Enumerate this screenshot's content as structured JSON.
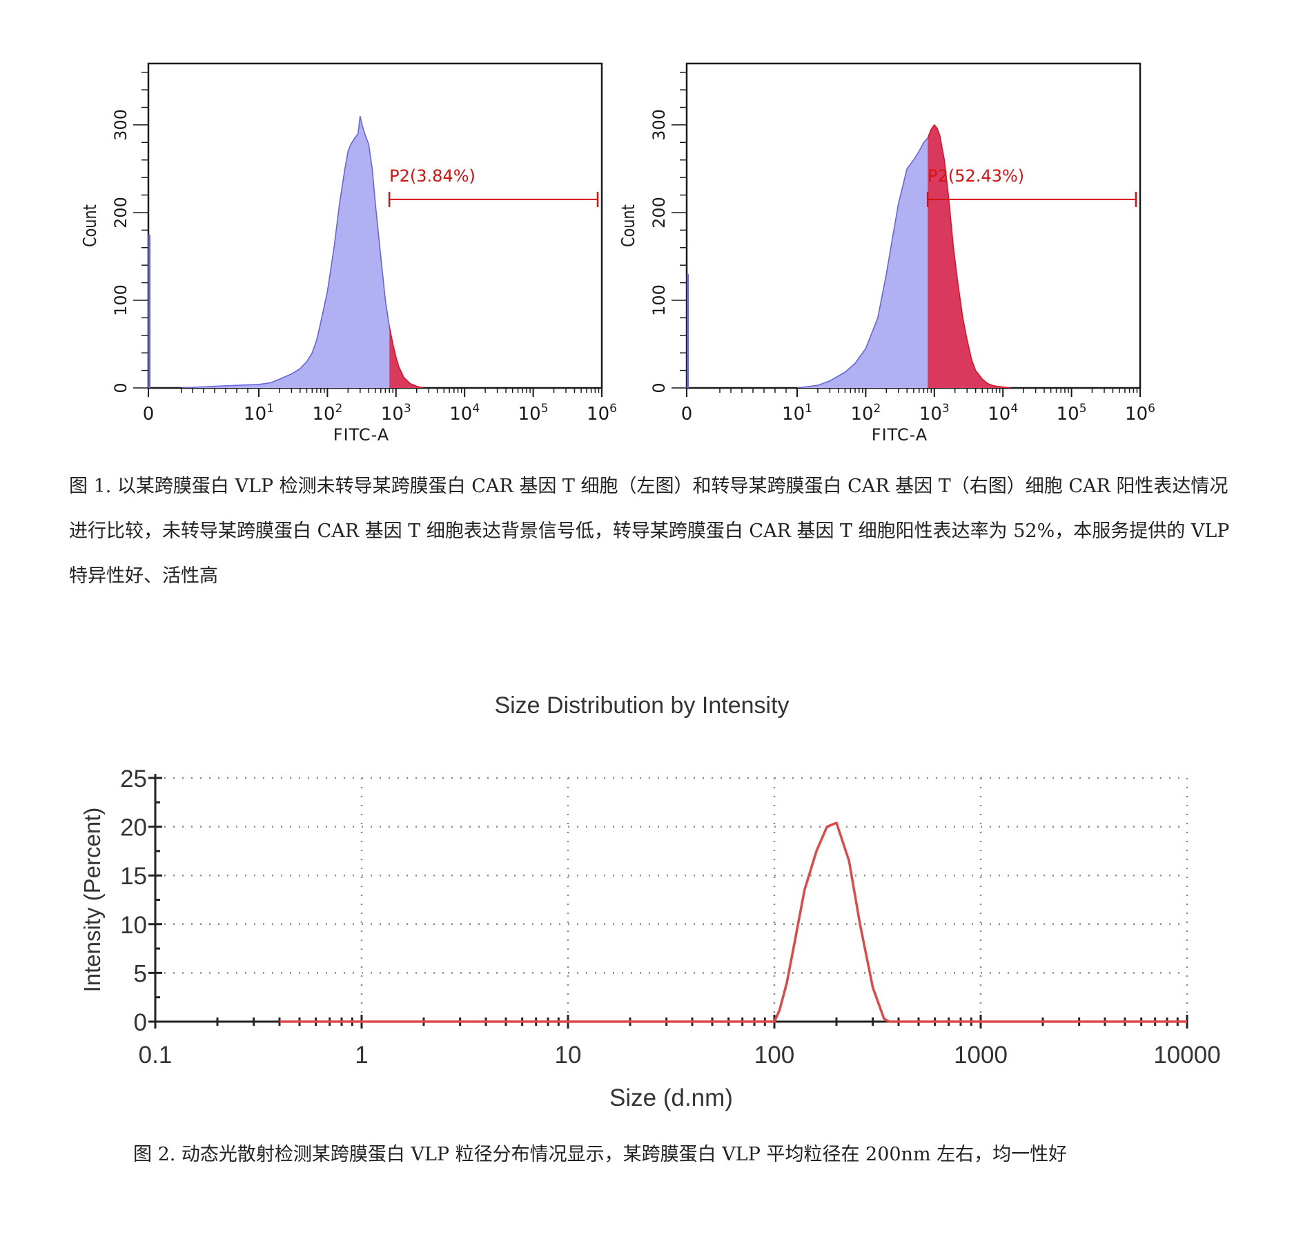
{
  "chart_data": [
    {
      "type": "area",
      "name": "flow-histogram-left",
      "xlabel": "FITC-A",
      "ylabel": "Count",
      "x_scale": "biexponential-log",
      "xlim": [
        0,
        1000000
      ],
      "ylim": [
        0,
        370
      ],
      "x_ticks": [
        {
          "value": 0,
          "base": "0",
          "exp": ""
        },
        {
          "value": 10,
          "base": "10",
          "exp": "1"
        },
        {
          "value": 100,
          "base": "10",
          "exp": "2"
        },
        {
          "value": 1000,
          "base": "10",
          "exp": "3"
        },
        {
          "value": 10000,
          "base": "10",
          "exp": "4"
        },
        {
          "value": 100000,
          "base": "10",
          "exp": "5"
        },
        {
          "value": 1000000,
          "base": "10",
          "exp": "6"
        }
      ],
      "y_ticks": [
        "0",
        "100",
        "200",
        "300"
      ],
      "gate": {
        "label": "P2(3.84%)",
        "from": 800,
        "to": 1000000,
        "percent": 3.84,
        "count_level": 215
      },
      "colors": {
        "negative": "#b0b0f2",
        "negative_edge": "#6565dc",
        "positive": "#d8395c",
        "positive_edge": "#e01020",
        "gate": "#d41212"
      },
      "zero_bin_count": 175,
      "series": [
        {
          "x": [
            3,
            6,
            10,
            15,
            20,
            30,
            40,
            50,
            60,
            70,
            80,
            100,
            125,
            150,
            180,
            200,
            220,
            250,
            280,
            300,
            320,
            350,
            400,
            450,
            500,
            600,
            700,
            800,
            900,
            1000,
            1100,
            1300,
            1600,
            2000,
            2500
          ],
          "y": [
            0,
            2,
            4,
            6,
            10,
            16,
            22,
            30,
            40,
            55,
            75,
            110,
            160,
            210,
            250,
            270,
            278,
            285,
            290,
            310,
            300,
            290,
            278,
            250,
            210,
            150,
            100,
            70,
            50,
            35,
            24,
            12,
            5,
            2,
            0
          ]
        }
      ]
    },
    {
      "type": "area",
      "name": "flow-histogram-right",
      "xlabel": "FITC-A",
      "ylabel": "Count",
      "x_scale": "biexponential-log",
      "xlim": [
        0,
        1000000
      ],
      "ylim": [
        0,
        370
      ],
      "x_ticks": [
        {
          "value": 0,
          "base": "0",
          "exp": ""
        },
        {
          "value": 10,
          "base": "10",
          "exp": "1"
        },
        {
          "value": 100,
          "base": "10",
          "exp": "2"
        },
        {
          "value": 1000,
          "base": "10",
          "exp": "3"
        },
        {
          "value": 10000,
          "base": "10",
          "exp": "4"
        },
        {
          "value": 100000,
          "base": "10",
          "exp": "5"
        },
        {
          "value": 1000000,
          "base": "10",
          "exp": "6"
        }
      ],
      "y_ticks": [
        "0",
        "100",
        "200",
        "300"
      ],
      "gate": {
        "label": "P2(52.43%)",
        "from": 800,
        "to": 1000000,
        "percent": 52.43,
        "count_level": 215
      },
      "colors": {
        "negative": "#b0b0f2",
        "negative_edge": "#6565dc",
        "positive": "#d8395c",
        "positive_edge": "#e01020",
        "gate": "#d41212"
      },
      "zero_bin_count": 130,
      "series": [
        {
          "x": [
            10,
            20,
            30,
            50,
            70,
            100,
            150,
            200,
            250,
            300,
            400,
            500,
            600,
            700,
            800,
            900,
            1000,
            1100,
            1200,
            1400,
            1600,
            1900,
            2200,
            2600,
            3000,
            3500,
            4000,
            5000,
            6000,
            7000,
            8000,
            10000,
            13000
          ],
          "y": [
            0,
            3,
            8,
            18,
            28,
            45,
            80,
            130,
            175,
            210,
            250,
            260,
            270,
            280,
            285,
            295,
            300,
            296,
            288,
            260,
            220,
            160,
            120,
            80,
            55,
            32,
            20,
            10,
            5,
            3,
            2,
            1,
            0
          ]
        }
      ]
    },
    {
      "type": "line",
      "name": "size-distribution",
      "title": "Size Distribution by Intensity",
      "xlabel": "Size (d.nm)",
      "ylabel": "Intensity (Percent)",
      "x_scale": "log",
      "xlim": [
        0.1,
        10000
      ],
      "ylim": [
        0,
        25
      ],
      "x_ticks": [
        "0.1",
        "1",
        "10",
        "100",
        "1000",
        "10000"
      ],
      "y_ticks": [
        "0",
        "5",
        "10",
        "15",
        "20",
        "25"
      ],
      "grid": true,
      "colors": {
        "line": "#e04848",
        "axis": "#222222",
        "grid": "#888888"
      },
      "series": [
        {
          "x": [
            0.4,
            100,
            106,
            115,
            125,
            140,
            160,
            180,
            200,
            230,
            260,
            300,
            340,
            360,
            10000
          ],
          "y": [
            0,
            0,
            1.2,
            4,
            8,
            13.5,
            17.5,
            20,
            20.4,
            16.5,
            10,
            3.5,
            0.3,
            0,
            0
          ]
        }
      ]
    }
  ],
  "captions": {
    "figure1": "图 1. 以某跨膜蛋白 VLP 检测未转导某跨膜蛋白 CAR 基因 T 细胞（左图）和转导某跨膜蛋白 CAR 基因 T（右图）细胞 CAR 阳性表达情况进行比较，未转导某跨膜蛋白 CAR 基因 T 细胞表达背景信号低，转导某跨膜蛋白 CAR 基因 T 细胞阳性表达率为 52%，本服务提供的 VLP 特异性好、活性高",
    "figure2": "图 2. 动态光散射检测某跨膜蛋白 VLP 粒径分布情况显示，某跨膜蛋白 VLP  平均粒径在 200nm 左右，均一性好"
  }
}
